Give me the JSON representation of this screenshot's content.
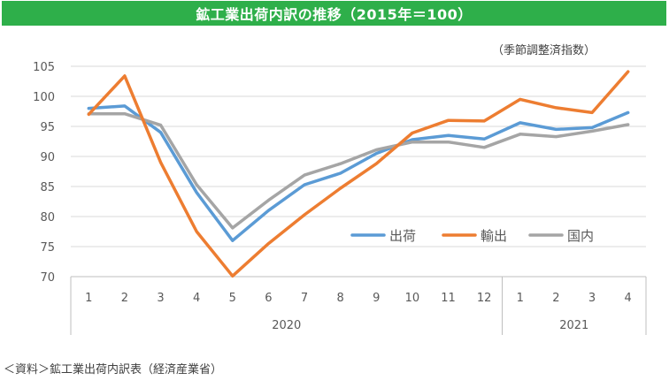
{
  "colors": {
    "title_bg": "#2EAF4A",
    "series": [
      "#5B9BD5",
      "#ED7D31",
      "#A5A5A5"
    ],
    "axis": "#BFBFBF",
    "grid": "#D9D9D9"
  },
  "chart_data": {
    "type": "line",
    "title": "鉱工業出荷内訳の推移（2015年＝100）",
    "unit_note": "（季節調整済指数）",
    "source": "＜資料＞鉱工業出荷内訳表（経済産業省）",
    "x": [
      "1",
      "2",
      "3",
      "4",
      "5",
      "6",
      "7",
      "8",
      "9",
      "10",
      "11",
      "12",
      "1",
      "2",
      "3",
      "4"
    ],
    "year_groups": [
      {
        "label": "2020",
        "count": 12
      },
      {
        "label": "2021",
        "count": 4
      }
    ],
    "ylim": [
      70,
      105
    ],
    "yticks": [
      70,
      75,
      80,
      85,
      90,
      95,
      100,
      105
    ],
    "grid": true,
    "legend_position": "bottom-right",
    "series": [
      {
        "name": "出荷",
        "values": [
          98.0,
          98.4,
          94.0,
          84.0,
          76.0,
          81.0,
          85.3,
          87.2,
          90.5,
          92.8,
          93.5,
          92.9,
          95.6,
          94.5,
          94.8,
          97.3
        ]
      },
      {
        "name": "輸出",
        "values": [
          97.0,
          103.4,
          89.0,
          77.5,
          70.1,
          75.5,
          80.3,
          84.7,
          88.8,
          93.9,
          96.0,
          95.9,
          99.5,
          98.1,
          97.3,
          104.1
        ]
      },
      {
        "name": "国内",
        "values": [
          97.1,
          97.1,
          95.2,
          85.3,
          78.1,
          82.7,
          86.9,
          88.8,
          91.1,
          92.4,
          92.4,
          91.5,
          93.7,
          93.3,
          94.2,
          95.3
        ]
      }
    ]
  }
}
